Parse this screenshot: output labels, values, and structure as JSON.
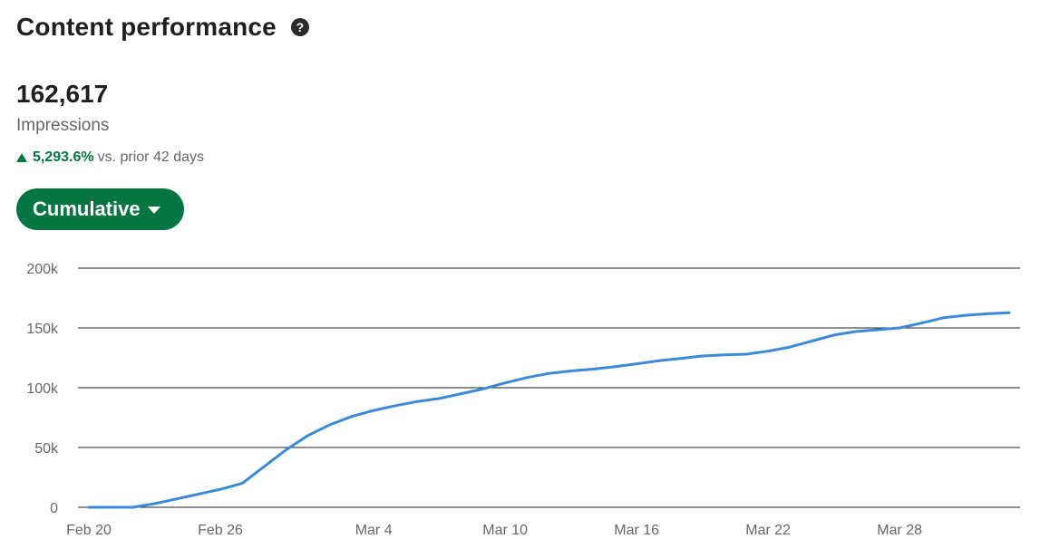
{
  "header": {
    "title": "Content performance",
    "help_icon": "question-circle-icon"
  },
  "metric": {
    "value": "162,617",
    "label": "Impressions",
    "delta_value": "5,293.6%",
    "delta_text": "vs. prior 42 days",
    "delta_icon": "triangle-up-icon"
  },
  "controls": {
    "mode_label": "Cumulative",
    "mode_icon": "caret-down-icon"
  },
  "colors": {
    "accent_green": "#057642",
    "line_blue": "#3b8ad9",
    "grid": "#1f1f1f"
  },
  "chart_data": {
    "type": "line",
    "title": "",
    "xlabel": "",
    "ylabel": "",
    "ylim": [
      0,
      200000
    ],
    "yticks": [
      0,
      50000,
      100000,
      150000,
      200000
    ],
    "ytick_labels": [
      "0",
      "50k",
      "100k",
      "150k",
      "200k"
    ],
    "xtick_labels": [
      "Feb 20",
      "Feb 26",
      "Mar 4",
      "Mar 10",
      "Mar 16",
      "Mar 22",
      "Mar 28"
    ],
    "x": [
      "Feb 20",
      "Feb 21",
      "Feb 22",
      "Feb 23",
      "Feb 24",
      "Feb 25",
      "Feb 26",
      "Feb 27",
      "Feb 28",
      "Feb 29",
      "Mar 1",
      "Mar 2",
      "Mar 3",
      "Mar 4",
      "Mar 5",
      "Mar 6",
      "Mar 7",
      "Mar 8",
      "Mar 9",
      "Mar 10",
      "Mar 11",
      "Mar 12",
      "Mar 13",
      "Mar 14",
      "Mar 15",
      "Mar 16",
      "Mar 17",
      "Mar 18",
      "Mar 19",
      "Mar 20",
      "Mar 21",
      "Mar 22",
      "Mar 23",
      "Mar 24",
      "Mar 25",
      "Mar 26",
      "Mar 27",
      "Mar 28",
      "Mar 29",
      "Mar 30",
      "Mar 31",
      "Apr 1",
      "Apr 2"
    ],
    "grid": true,
    "series": [
      {
        "values": [
          0,
          0,
          0,
          3000,
          7000,
          11000,
          15000,
          20000,
          34000,
          48000,
          60000,
          69000,
          76000,
          81000,
          85000,
          88500,
          91000,
          95000,
          99000,
          104000,
          108500,
          112000,
          114000,
          115500,
          117500,
          120000,
          122500,
          124500,
          126500,
          127500,
          128000,
          130500,
          134000,
          139000,
          144000,
          147000,
          148500,
          150000,
          154000,
          158500,
          160500,
          161800,
          162617
        ]
      }
    ]
  }
}
